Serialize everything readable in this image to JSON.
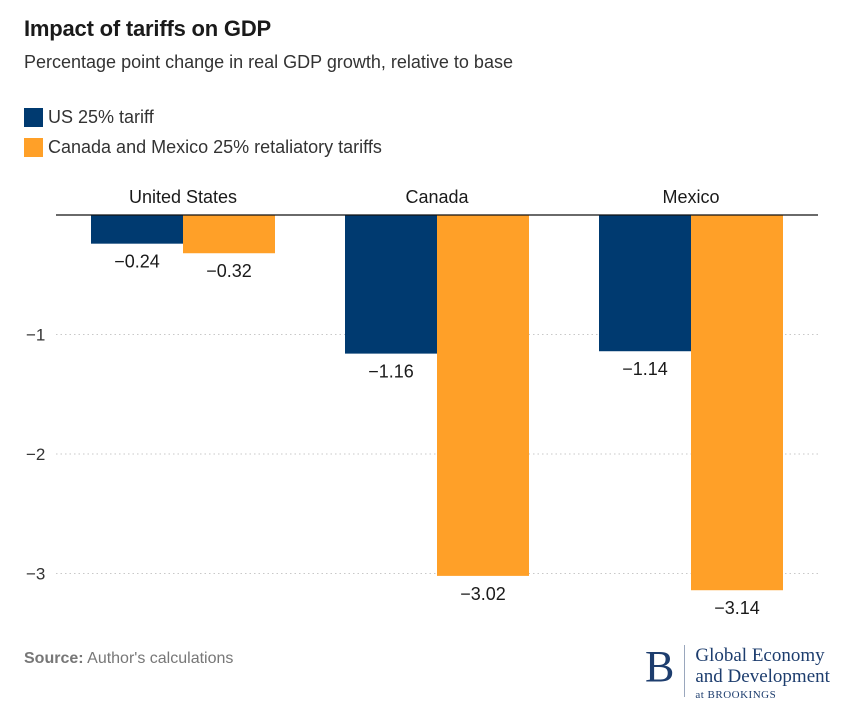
{
  "title": "Impact of tariffs on GDP",
  "subtitle": "Percentage point change in real GDP growth, relative to base",
  "legend": [
    {
      "label": "US 25% tariff",
      "color": "#003a70"
    },
    {
      "label": "Canada and Mexico 25% retaliatory tariffs",
      "color": "#ffa028"
    }
  ],
  "source": {
    "label": "Source:",
    "text": "Author's calculations"
  },
  "logo": {
    "mark": "B",
    "line1": "Global Economy",
    "line2": "and Development",
    "line3": "at BROOKINGS"
  },
  "chart_data": {
    "type": "bar",
    "categories": [
      "United States",
      "Canada",
      "Mexico"
    ],
    "series": [
      {
        "name": "US 25% tariff",
        "values": [
          -0.24,
          -1.16,
          -1.14
        ],
        "labels": [
          "−0.24",
          "−1.16",
          "−1.14"
        ],
        "color": "#003a70"
      },
      {
        "name": "Canada and Mexico 25% retaliatory tariffs",
        "values": [
          -0.32,
          -3.02,
          -3.14
        ],
        "labels": [
          "−0.32",
          "−3.02",
          "−3.14"
        ],
        "color": "#ffa028"
      }
    ],
    "yticks": [
      -1,
      -2,
      -3
    ],
    "ytick_labels": [
      "−1",
      "−2",
      "−3"
    ],
    "ylim": [
      -3.3,
      0
    ],
    "grid": true,
    "legend_position": "top-left"
  }
}
